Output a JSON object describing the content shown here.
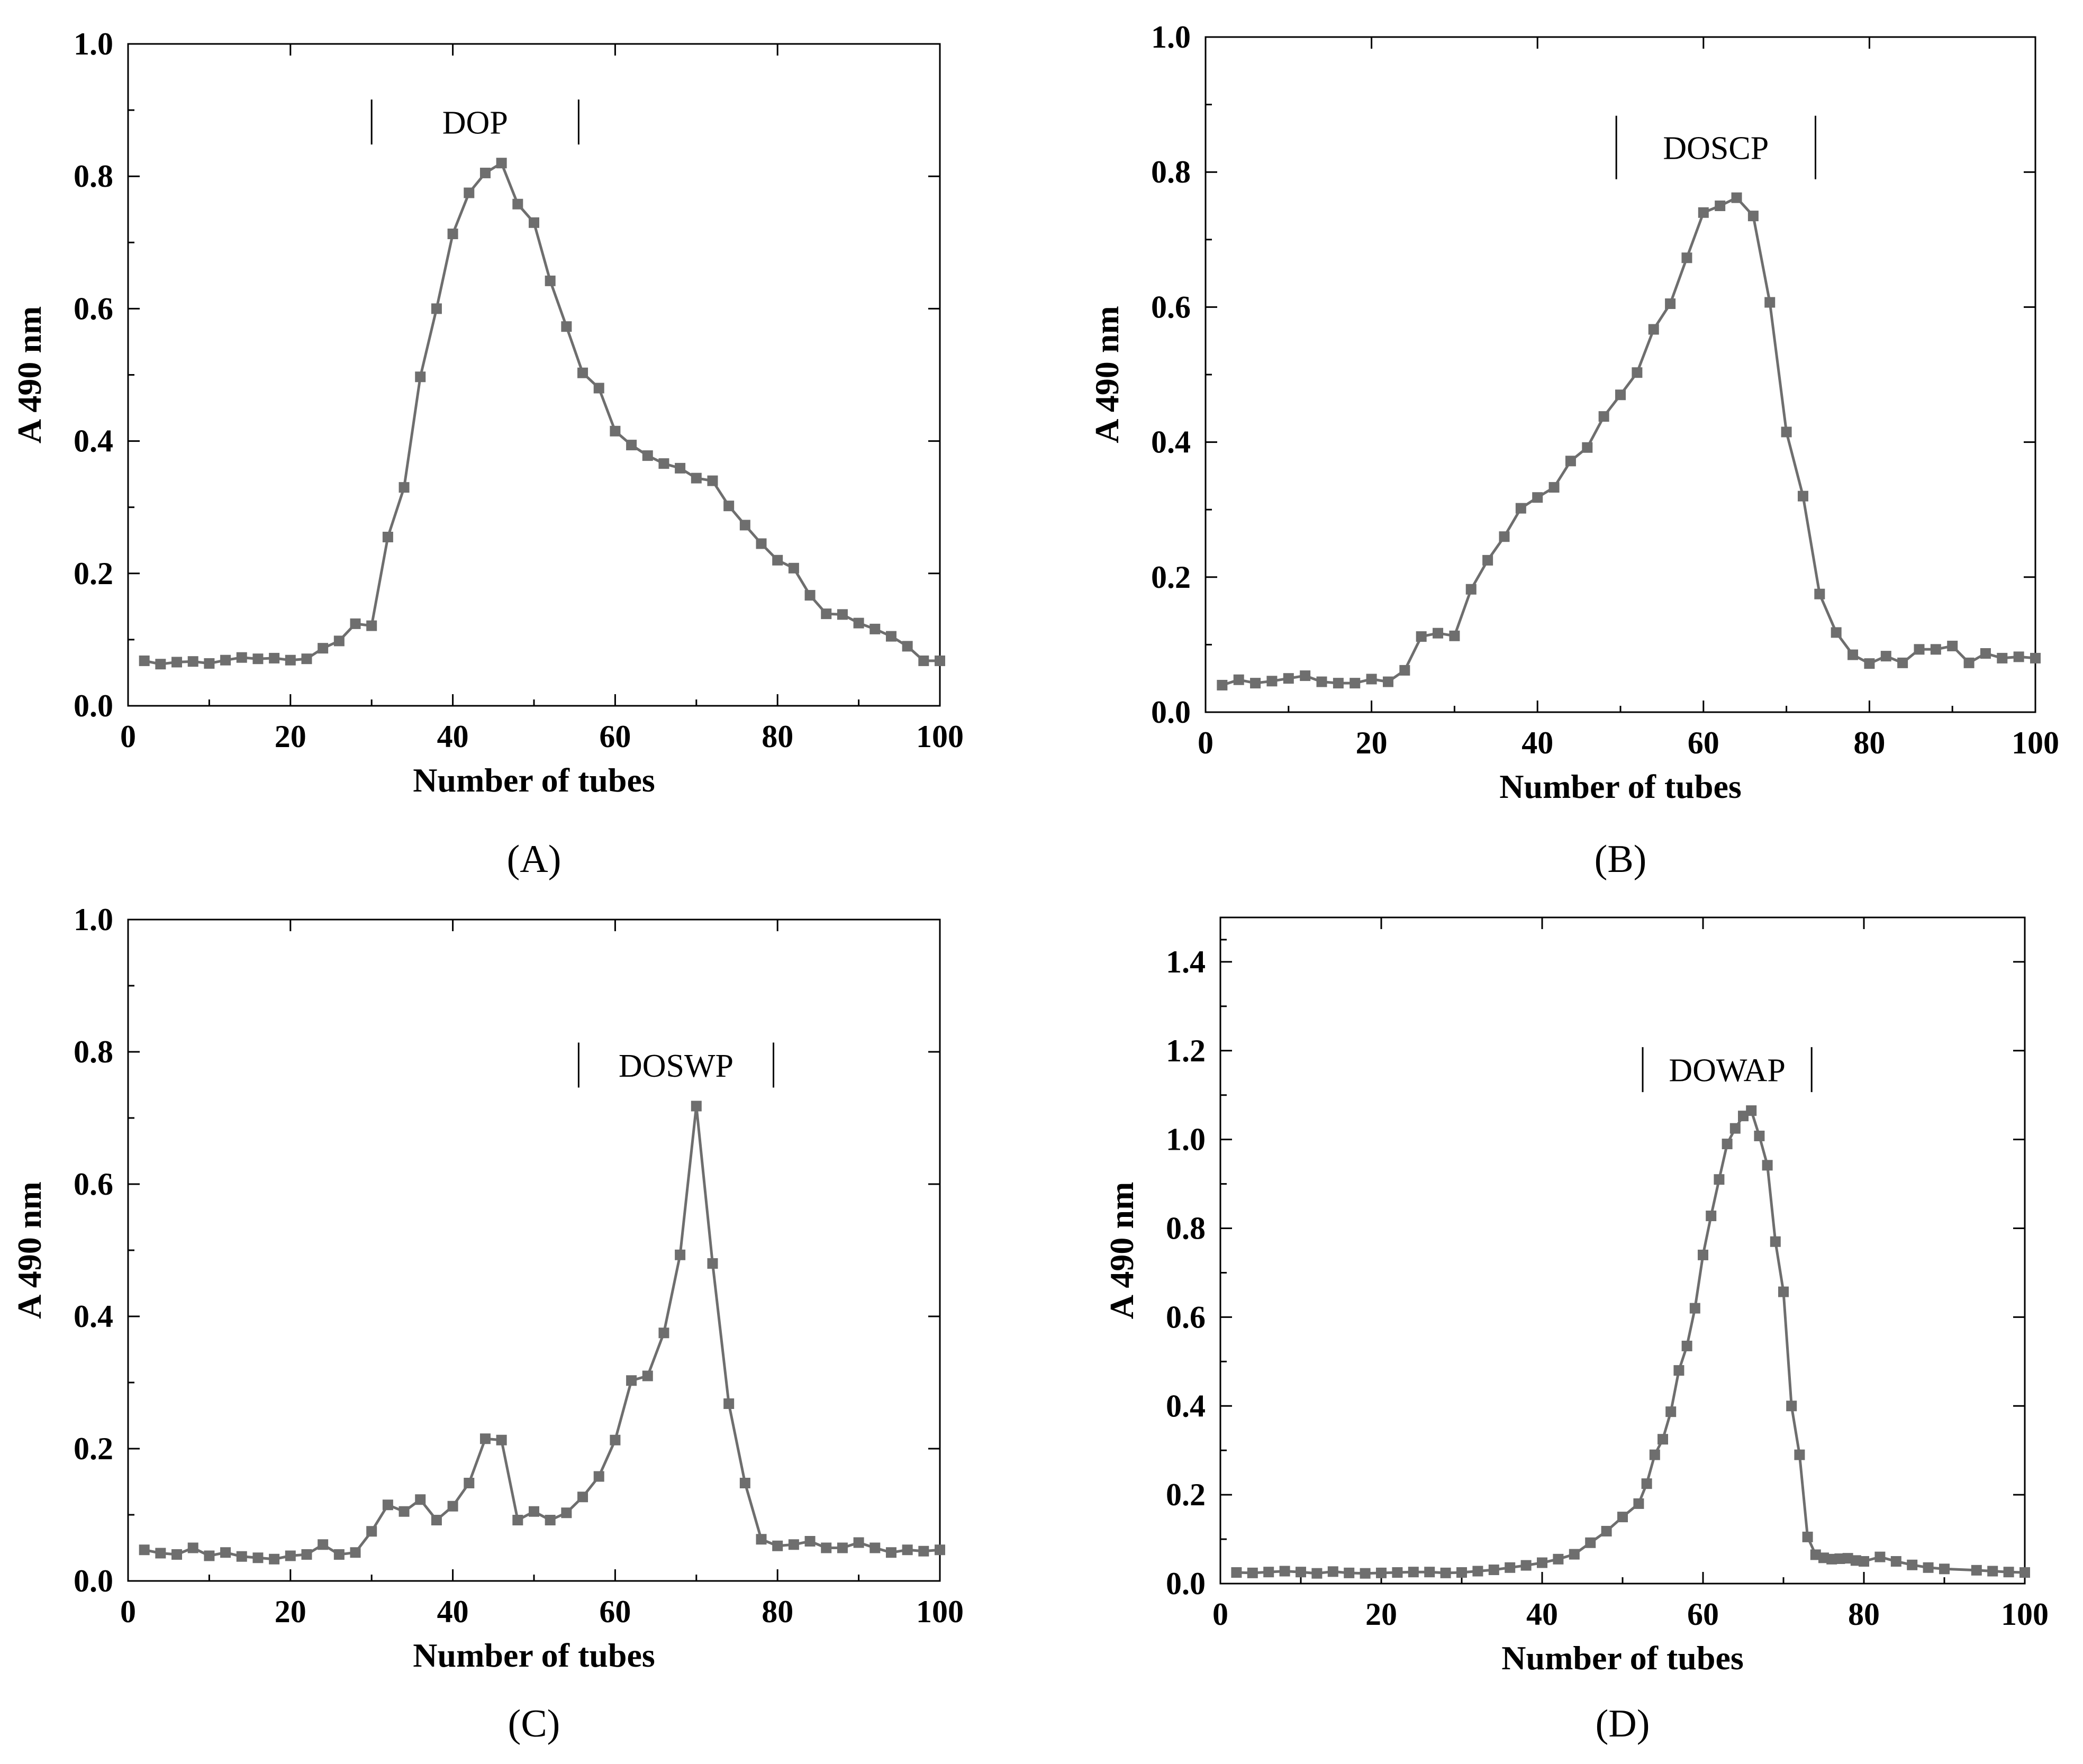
{
  "colors": {
    "series": "#6e6e6e",
    "axis": "#000000",
    "background": "#ffffff"
  },
  "chart_data": [
    {
      "panel": "(A)",
      "type": "line",
      "annotation": "DOP",
      "annotation_range": [
        30,
        55.5
      ],
      "xlabel": "Number of tubes",
      "ylabel": "A 490 nm",
      "xlim": [
        0,
        100
      ],
      "ylim": [
        0,
        1.0
      ],
      "xticks": [
        "0",
        "20",
        "40",
        "60",
        "80",
        "100"
      ],
      "yticks": [
        "0.0",
        "0.2",
        "0.4",
        "0.6",
        "0.8",
        "1.0"
      ],
      "series": [
        {
          "name": "DOP",
          "x": [
            2,
            4,
            6,
            8,
            10,
            12,
            14,
            16,
            18,
            20,
            22,
            24,
            26,
            28,
            30,
            32,
            34,
            36,
            38,
            40,
            42,
            44,
            46,
            48,
            50,
            52,
            54,
            56,
            58,
            60,
            62,
            64,
            66,
            68,
            70,
            72,
            74,
            76,
            78,
            80,
            82,
            84,
            86,
            88,
            90,
            92,
            94,
            96,
            98,
            100
          ],
          "y": [
            0.068,
            0.063,
            0.066,
            0.067,
            0.064,
            0.069,
            0.073,
            0.071,
            0.072,
            0.069,
            0.071,
            0.087,
            0.098,
            0.124,
            0.121,
            0.255,
            0.33,
            0.497,
            0.6,
            0.713,
            0.775,
            0.805,
            0.82,
            0.758,
            0.73,
            0.642,
            0.573,
            0.503,
            0.48,
            0.415,
            0.394,
            0.378,
            0.366,
            0.359,
            0.344,
            0.34,
            0.302,
            0.273,
            0.245,
            0.22,
            0.208,
            0.167,
            0.139,
            0.138,
            0.125,
            0.116,
            0.105,
            0.09,
            0.068,
            0.068
          ]
        }
      ]
    },
    {
      "panel": "(B)",
      "type": "line",
      "annotation": "DOSCP",
      "annotation_range": [
        49.5,
        73.5
      ],
      "xlabel": "Number of tubes",
      "ylabel": "A 490 nm",
      "xlim": [
        0,
        100
      ],
      "ylim": [
        0,
        1.0
      ],
      "xticks": [
        "0",
        "20",
        "40",
        "60",
        "80",
        "100"
      ],
      "yticks": [
        "0.0",
        "0.2",
        "0.4",
        "0.6",
        "0.8",
        "1.0"
      ],
      "series": [
        {
          "name": "DOSCP",
          "x": [
            2,
            4,
            6,
            8,
            10,
            12,
            14,
            16,
            18,
            20,
            22,
            24,
            26,
            28,
            30,
            32,
            34,
            36,
            38,
            40,
            42,
            44,
            46,
            48,
            50,
            52,
            54,
            56,
            58,
            60,
            62,
            64,
            66,
            68,
            70,
            72,
            74,
            76,
            78,
            80,
            82,
            84,
            86,
            88,
            90,
            92,
            94,
            96,
            98,
            100
          ],
          "y": [
            0.04,
            0.048,
            0.043,
            0.046,
            0.05,
            0.054,
            0.045,
            0.043,
            0.043,
            0.049,
            0.045,
            0.062,
            0.112,
            0.117,
            0.113,
            0.182,
            0.225,
            0.26,
            0.302,
            0.318,
            0.333,
            0.372,
            0.392,
            0.438,
            0.47,
            0.503,
            0.567,
            0.605,
            0.673,
            0.74,
            0.75,
            0.762,
            0.735,
            0.607,
            0.415,
            0.32,
            0.175,
            0.118,
            0.085,
            0.072,
            0.083,
            0.073,
            0.093,
            0.093,
            0.098,
            0.073,
            0.087,
            0.08,
            0.082,
            0.08
          ]
        }
      ]
    },
    {
      "panel": "(C)",
      "type": "line",
      "annotation": "DOSWP",
      "annotation_range": [
        55.5,
        79.5
      ],
      "xlabel": "Number of tubes",
      "ylabel": "A 490 nm",
      "xlim": [
        0,
        100
      ],
      "ylim": [
        0,
        1.0
      ],
      "xticks": [
        "0",
        "20",
        "40",
        "60",
        "80",
        "100"
      ],
      "yticks": [
        "0.0",
        "0.2",
        "0.4",
        "0.6",
        "0.8",
        "1.0"
      ],
      "series": [
        {
          "name": "DOSWP",
          "x": [
            2,
            4,
            6,
            8,
            10,
            12,
            14,
            16,
            18,
            20,
            22,
            24,
            26,
            28,
            30,
            32,
            34,
            36,
            38,
            40,
            42,
            44,
            46,
            48,
            50,
            52,
            54,
            56,
            58,
            60,
            62,
            64,
            66,
            68,
            70,
            72,
            74,
            76,
            78,
            80,
            82,
            84,
            86,
            88,
            90,
            92,
            94,
            96,
            98,
            100
          ],
          "y": [
            0.047,
            0.042,
            0.04,
            0.05,
            0.038,
            0.043,
            0.037,
            0.035,
            0.033,
            0.038,
            0.04,
            0.055,
            0.04,
            0.043,
            0.075,
            0.115,
            0.105,
            0.123,
            0.092,
            0.113,
            0.148,
            0.215,
            0.213,
            0.092,
            0.105,
            0.092,
            0.103,
            0.127,
            0.158,
            0.213,
            0.303,
            0.31,
            0.375,
            0.493,
            0.718,
            0.48,
            0.268,
            0.148,
            0.063,
            0.053,
            0.055,
            0.06,
            0.05,
            0.05,
            0.058,
            0.05,
            0.043,
            0.047,
            0.045,
            0.047
          ]
        }
      ]
    },
    {
      "panel": "(D)",
      "type": "line",
      "annotation": "DOWAP",
      "annotation_range": [
        52.5,
        73.5
      ],
      "xlabel": "Number of tubes",
      "ylabel": "A 490 nm",
      "xlim": [
        0,
        100
      ],
      "ylim": [
        0,
        1.5
      ],
      "xticks": [
        "0",
        "20",
        "40",
        "60",
        "80",
        "100"
      ],
      "yticks": [
        "0.0",
        "0.2",
        "0.4",
        "0.6",
        "0.8",
        "1.0",
        "1.2",
        "1.4"
      ],
      "series": [
        {
          "name": "DOWAP",
          "x": [
            2,
            4,
            6,
            8,
            10,
            12,
            14,
            16,
            18,
            20,
            22,
            24,
            26,
            28,
            30,
            32,
            34,
            36,
            38,
            40,
            42,
            44,
            46,
            48,
            50,
            52,
            53,
            54,
            55,
            56,
            57,
            58,
            59,
            60,
            61,
            62,
            63,
            64,
            65,
            66,
            67,
            68,
            69,
            70,
            71,
            72,
            73,
            74,
            75,
            76,
            77,
            78,
            79,
            80,
            82,
            84,
            86,
            88,
            90,
            94,
            96,
            98,
            100
          ],
          "y": [
            0.025,
            0.024,
            0.026,
            0.028,
            0.026,
            0.023,
            0.027,
            0.024,
            0.023,
            0.024,
            0.025,
            0.026,
            0.026,
            0.024,
            0.025,
            0.028,
            0.031,
            0.036,
            0.041,
            0.047,
            0.055,
            0.066,
            0.092,
            0.118,
            0.15,
            0.18,
            0.225,
            0.29,
            0.325,
            0.387,
            0.48,
            0.535,
            0.62,
            0.74,
            0.828,
            0.91,
            0.99,
            1.025,
            1.053,
            1.065,
            1.008,
            0.942,
            0.77,
            0.657,
            0.4,
            0.29,
            0.105,
            0.065,
            0.058,
            0.055,
            0.056,
            0.057,
            0.052,
            0.05,
            0.06,
            0.05,
            0.042,
            0.036,
            0.033,
            0.03,
            0.028,
            0.026,
            0.025
          ]
        }
      ]
    }
  ]
}
